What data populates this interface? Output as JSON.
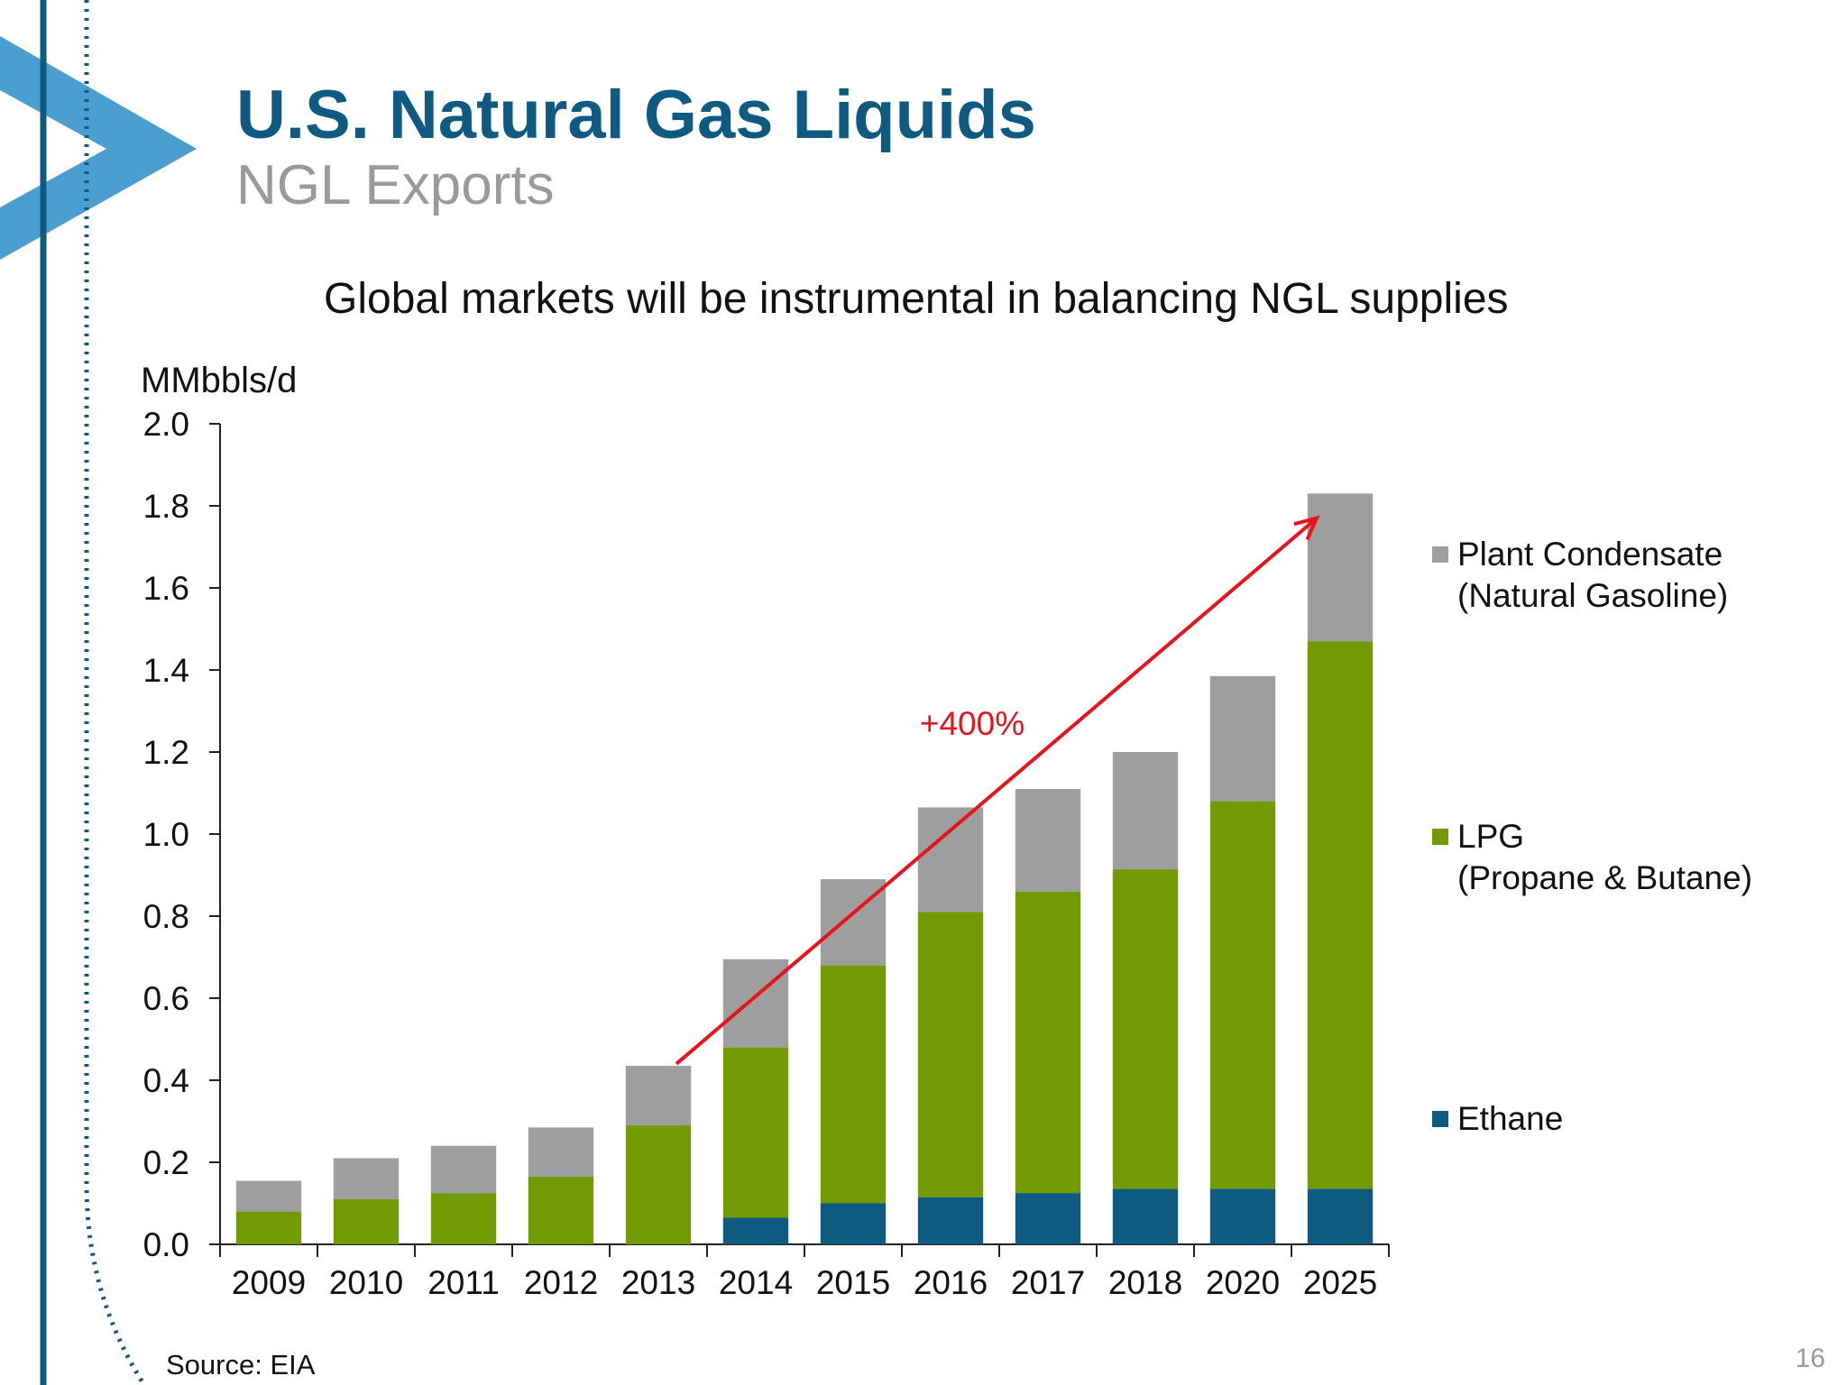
{
  "slide": {
    "title": "U.S. Natural Gas Liquids",
    "subtitle": "NGL Exports",
    "headline": "Global markets will be instrumental in balancing NGL supplies",
    "source": "Source: EIA",
    "page_number": "16"
  },
  "colors": {
    "title": "#0e5a80",
    "ethane": "#0e5a80",
    "lpg": "#729a02",
    "condensate": "#9e9ea1",
    "arrow": "#e8141b"
  },
  "chart_data": {
    "type": "bar",
    "stacked": true,
    "title": "Global markets will be instrumental in balancing NGL supplies",
    "ylabel": "MMbbls/d",
    "xlabel": "",
    "ylim": [
      0,
      2.0
    ],
    "yticks": [
      "0.0",
      "0.2",
      "0.4",
      "0.6",
      "0.8",
      "1.0",
      "1.2",
      "1.4",
      "1.6",
      "1.8",
      "2.0"
    ],
    "categories": [
      "2009",
      "2010",
      "2011",
      "2012",
      "2013",
      "2014",
      "2015",
      "2016",
      "2017",
      "2018",
      "2020",
      "2025"
    ],
    "series": [
      {
        "name": "Ethane",
        "label_lines": [
          "Ethane"
        ],
        "color": "#0e5a80",
        "values": [
          0,
          0,
          0,
          0,
          0,
          0.065,
          0.1,
          0.115,
          0.125,
          0.135,
          0.135,
          0.135
        ]
      },
      {
        "name": "LPG (Propane & Butane)",
        "label_lines": [
          "LPG",
          "(Propane & Butane)"
        ],
        "color": "#729a02",
        "values": [
          0.08,
          0.11,
          0.125,
          0.165,
          0.29,
          0.415,
          0.58,
          0.695,
          0.735,
          0.78,
          0.945,
          1.335
        ]
      },
      {
        "name": "Plant Condensate (Natural Gasoline)",
        "label_lines": [
          "Plant Condensate",
          "(Natural Gasoline)"
        ],
        "color": "#9e9ea1",
        "values": [
          0.075,
          0.1,
          0.115,
          0.12,
          0.145,
          0.215,
          0.21,
          0.255,
          0.25,
          0.285,
          0.305,
          0.36
        ]
      }
    ],
    "annotations": [
      {
        "text": "+400%",
        "from_category": "2013",
        "from_value": 0.44,
        "to_category": "2025",
        "to_value": 1.77
      }
    ]
  }
}
